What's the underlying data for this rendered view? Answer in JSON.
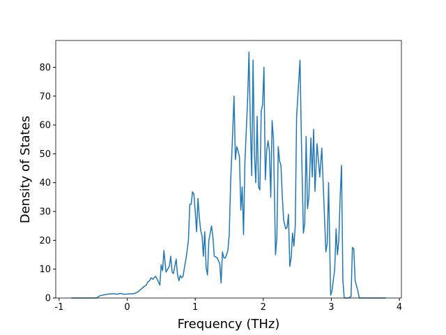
{
  "chart_data": {
    "type": "line",
    "xlabel": "Frequency (THz)",
    "ylabel": "Density of States",
    "x": [
      -0.82,
      -0.45,
      -0.4,
      -0.3,
      -0.2,
      -0.15,
      -0.1,
      -0.05,
      0.1,
      0.15,
      0.2,
      0.25,
      0.28,
      0.3,
      0.33,
      0.35,
      0.38,
      0.4,
      0.42,
      0.45,
      0.48,
      0.5,
      0.52,
      0.54,
      0.57,
      0.62,
      0.64,
      0.66,
      0.68,
      0.72,
      0.74,
      0.76,
      0.78,
      0.8,
      0.82,
      0.87,
      0.9,
      0.92,
      0.94,
      0.96,
      0.98,
      1.0,
      1.02,
      1.04,
      1.06,
      1.08,
      1.1,
      1.12,
      1.14,
      1.16,
      1.18,
      1.2,
      1.24,
      1.26,
      1.28,
      1.32,
      1.34,
      1.36,
      1.38,
      1.4,
      1.42,
      1.44,
      1.46,
      1.48,
      1.5,
      1.52,
      1.55,
      1.57,
      1.59,
      1.61,
      1.63,
      1.65,
      1.67,
      1.69,
      1.71,
      1.73,
      1.77,
      1.79,
      1.81,
      1.83,
      1.85,
      1.87,
      1.89,
      1.91,
      1.93,
      1.95,
      1.97,
      1.99,
      2.01,
      2.03,
      2.05,
      2.07,
      2.09,
      2.11,
      2.13,
      2.15,
      2.18,
      2.2,
      2.22,
      2.24,
      2.26,
      2.28,
      2.3,
      2.33,
      2.35,
      2.37,
      2.39,
      2.41,
      2.43,
      2.45,
      2.47,
      2.49,
      2.54,
      2.56,
      2.59,
      2.61,
      2.63,
      2.65,
      2.67,
      2.7,
      2.72,
      2.74,
      2.76,
      2.79,
      2.81,
      2.83,
      2.86,
      2.92,
      2.94,
      2.96,
      2.99,
      3.01,
      3.05,
      3.07,
      3.09,
      3.11,
      3.13,
      3.15,
      3.17,
      3.19,
      3.25,
      3.29,
      3.31,
      3.33,
      3.35,
      3.39,
      3.41,
      3.8
    ],
    "series": [
      {
        "name": "DOS",
        "color": "#1f77b4",
        "values": [
          0,
          0,
          0.8,
          1.3,
          1.5,
          1.3,
          1.6,
          1.3,
          1.5,
          2,
          3,
          4,
          4.5,
          5.5,
          6,
          7,
          6.5,
          7.2,
          7.5,
          6,
          4.5,
          11.5,
          9.5,
          16.5,
          9,
          11,
          14.5,
          9,
          8.5,
          13.5,
          8,
          6,
          7.8,
          7,
          7.5,
          14.5,
          20,
          32.5,
          32.5,
          36.8,
          36,
          30,
          23,
          34.5,
          28,
          23.5,
          21.5,
          14.5,
          23,
          10.5,
          8,
          20,
          25,
          21,
          14.5,
          14,
          13,
          12,
          5.2,
          16,
          14,
          13.8,
          15,
          16.5,
          22,
          40,
          57,
          70,
          48,
          52.5,
          51,
          49,
          30.5,
          38.5,
          22,
          47,
          69,
          85.3,
          60,
          42.5,
          82.5,
          50,
          40,
          63,
          38.5,
          37.5,
          65,
          67,
          80,
          41,
          51,
          54.5,
          51,
          35,
          61.5,
          55,
          15,
          21,
          52.5,
          47.5,
          46,
          35,
          27,
          24,
          24.5,
          29,
          11,
          14,
          22.5,
          18,
          25,
          63,
          82.5,
          55,
          22.5,
          26,
          56,
          31,
          35,
          55.5,
          42,
          58.5,
          37,
          53.5,
          48,
          42,
          52,
          16,
          19,
          40,
          1,
          2.5,
          10,
          24,
          15,
          20,
          35,
          46,
          6,
          0,
          0,
          0.5,
          17.5,
          17,
          6,
          2.5,
          0,
          0
        ]
      }
    ],
    "xlim": [
      -1.05,
      4.03
    ],
    "ylim": [
      0,
      89.3
    ],
    "xticks": [
      -1,
      0,
      1,
      2,
      3,
      4
    ],
    "yticks": [
      0,
      10,
      20,
      30,
      40,
      50,
      60,
      70,
      80
    ]
  }
}
